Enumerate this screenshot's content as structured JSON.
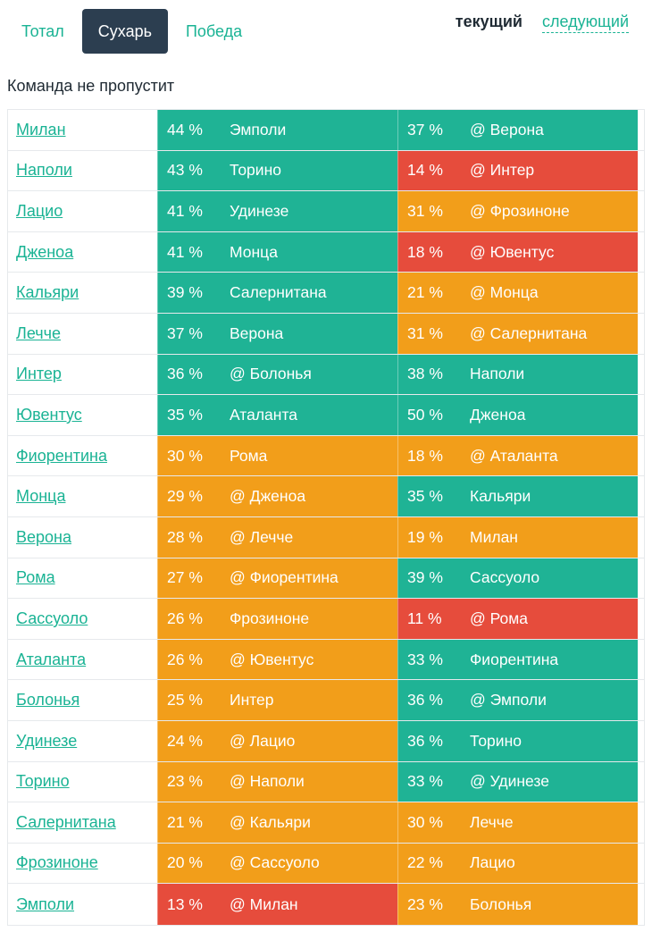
{
  "tabs": [
    {
      "label": "Тотал",
      "active": false
    },
    {
      "label": "Сухарь",
      "active": true
    },
    {
      "label": "Победа",
      "active": false
    }
  ],
  "periods": {
    "current": "текущий",
    "next": "следующий"
  },
  "subtitle": "Команда не пропустит",
  "colors": {
    "green": "#1fb395",
    "orange": "#f29e1a",
    "red": "#e64c3c",
    "accent": "#1ab394",
    "active_tab": "#2c3e50"
  },
  "rows": [
    {
      "team": "Милан",
      "cur": {
        "pct": "44 %",
        "opp": "Эмполи",
        "level": "green"
      },
      "next": {
        "pct": "37 %",
        "opp": "@ Верона",
        "level": "green"
      }
    },
    {
      "team": "Наполи",
      "cur": {
        "pct": "43 %",
        "opp": "Торино",
        "level": "green"
      },
      "next": {
        "pct": "14 %",
        "opp": "@ Интер",
        "level": "red"
      }
    },
    {
      "team": "Лацио",
      "cur": {
        "pct": "41 %",
        "opp": "Удинезе",
        "level": "green"
      },
      "next": {
        "pct": "31 %",
        "opp": "@ Фрозиноне",
        "level": "orange"
      }
    },
    {
      "team": "Дженоа",
      "cur": {
        "pct": "41 %",
        "opp": "Монца",
        "level": "green"
      },
      "next": {
        "pct": "18 %",
        "opp": "@ Ювентус",
        "level": "red"
      }
    },
    {
      "team": "Кальяри",
      "cur": {
        "pct": "39 %",
        "opp": "Салернитана",
        "level": "green"
      },
      "next": {
        "pct": "21 %",
        "opp": "@ Монца",
        "level": "orange"
      }
    },
    {
      "team": "Лечче",
      "cur": {
        "pct": "37 %",
        "opp": "Верона",
        "level": "green"
      },
      "next": {
        "pct": "31 %",
        "opp": "@ Салернитана",
        "level": "orange"
      }
    },
    {
      "team": "Интер",
      "cur": {
        "pct": "36 %",
        "opp": "@ Болонья",
        "level": "green"
      },
      "next": {
        "pct": "38 %",
        "opp": "Наполи",
        "level": "green"
      }
    },
    {
      "team": "Ювентус",
      "cur": {
        "pct": "35 %",
        "opp": "Аталанта",
        "level": "green"
      },
      "next": {
        "pct": "50 %",
        "opp": "Дженоа",
        "level": "green"
      }
    },
    {
      "team": "Фиорентина",
      "cur": {
        "pct": "30 %",
        "opp": "Рома",
        "level": "orange"
      },
      "next": {
        "pct": "18 %",
        "opp": "@ Аталанта",
        "level": "orange"
      }
    },
    {
      "team": "Монца",
      "cur": {
        "pct": "29 %",
        "opp": "@ Дженоа",
        "level": "orange"
      },
      "next": {
        "pct": "35 %",
        "opp": "Кальяри",
        "level": "green"
      }
    },
    {
      "team": "Верона",
      "cur": {
        "pct": "28 %",
        "opp": "@ Лечче",
        "level": "orange"
      },
      "next": {
        "pct": "19 %",
        "opp": "Милан",
        "level": "orange"
      }
    },
    {
      "team": "Рома",
      "cur": {
        "pct": "27 %",
        "opp": "@ Фиорентина",
        "level": "orange"
      },
      "next": {
        "pct": "39 %",
        "opp": "Сассуоло",
        "level": "green"
      }
    },
    {
      "team": "Сассуоло",
      "cur": {
        "pct": "26 %",
        "opp": "Фрозиноне",
        "level": "orange"
      },
      "next": {
        "pct": "11 %",
        "opp": "@ Рома",
        "level": "red"
      }
    },
    {
      "team": "Аталанта",
      "cur": {
        "pct": "26 %",
        "opp": "@ Ювентус",
        "level": "orange"
      },
      "next": {
        "pct": "33 %",
        "opp": "Фиорентина",
        "level": "green"
      }
    },
    {
      "team": "Болонья",
      "cur": {
        "pct": "25 %",
        "opp": "Интер",
        "level": "orange"
      },
      "next": {
        "pct": "36 %",
        "opp": "@ Эмполи",
        "level": "green"
      }
    },
    {
      "team": "Удинезе",
      "cur": {
        "pct": "24 %",
        "opp": "@ Лацио",
        "level": "orange"
      },
      "next": {
        "pct": "36 %",
        "opp": "Торино",
        "level": "green"
      }
    },
    {
      "team": "Торино",
      "cur": {
        "pct": "23 %",
        "opp": "@ Наполи",
        "level": "orange"
      },
      "next": {
        "pct": "33 %",
        "opp": "@ Удинезе",
        "level": "green"
      }
    },
    {
      "team": "Салернитана",
      "cur": {
        "pct": "21 %",
        "opp": "@ Кальяри",
        "level": "orange"
      },
      "next": {
        "pct": "30 %",
        "opp": "Лечче",
        "level": "orange"
      }
    },
    {
      "team": "Фрозиноне",
      "cur": {
        "pct": "20 %",
        "opp": "@ Сассуоло",
        "level": "orange"
      },
      "next": {
        "pct": "22 %",
        "opp": "Лацио",
        "level": "orange"
      }
    },
    {
      "team": "Эмполи",
      "cur": {
        "pct": "13 %",
        "opp": "@ Милан",
        "level": "red"
      },
      "next": {
        "pct": "23 %",
        "opp": "Болонья",
        "level": "orange"
      }
    }
  ]
}
